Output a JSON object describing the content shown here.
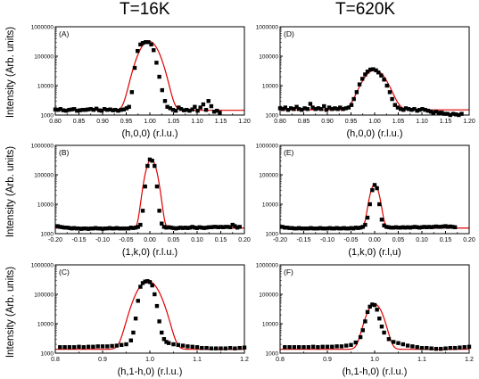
{
  "col_titles": [
    "T=16K",
    "T=620K"
  ],
  "ylabel_shared": "Intensity (Arb. units)",
  "chart_data": [
    {
      "type": "scatter",
      "panel": "A",
      "column": 0,
      "row": 0,
      "xlabel": "(h,0,0) (r.l.u.)",
      "ylabel": "Intensity (Arb. units)",
      "xlim": [
        0.8,
        1.2
      ],
      "ylim": [
        1000,
        1000000
      ],
      "yscale": "log",
      "xticks": [
        0.8,
        0.85,
        0.9,
        0.95,
        1.0,
        1.05,
        1.1,
        1.15,
        1.2
      ],
      "xtick_labels": [
        "0.80",
        "0.85",
        "0.90",
        "0.95",
        "1.00",
        "1.05",
        "1.10",
        "1.15",
        "1.20"
      ],
      "yticks": [
        1000,
        10000,
        100000,
        1000000
      ],
      "ytick_labels": [
        "1000",
        "10000",
        "100000",
        "1000000"
      ],
      "fit": {
        "center": 0.998,
        "sigma": 0.016,
        "peak": 320000,
        "background": 1450,
        "color": "#e00000"
      },
      "points": {
        "x": [
          0.8,
          0.806,
          0.811,
          0.817,
          0.823,
          0.829,
          0.835,
          0.84,
          0.846,
          0.852,
          0.858,
          0.864,
          0.869,
          0.875,
          0.881,
          0.887,
          0.893,
          0.898,
          0.904,
          0.91,
          0.916,
          0.922,
          0.927,
          0.933,
          0.939,
          0.945,
          0.951,
          0.956,
          0.962,
          0.968,
          0.974,
          0.98,
          0.985,
          0.991,
          0.997,
          1.003,
          1.008,
          1.014,
          1.02,
          1.026,
          1.032,
          1.037,
          1.043,
          1.049,
          1.055,
          1.061,
          1.066,
          1.072,
          1.078,
          1.084,
          1.09,
          1.095,
          1.101,
          1.107,
          1.113,
          1.119,
          1.124,
          1.13,
          1.136,
          1.142,
          1.148
        ],
        "y": [
          1550,
          1500,
          1600,
          1450,
          1400,
          1500,
          1550,
          1600,
          1400,
          1450,
          1500,
          1500,
          1550,
          1600,
          1500,
          1650,
          1450,
          1400,
          1600,
          1500,
          1550,
          1450,
          1500,
          1400,
          1500,
          1550,
          1700,
          1900,
          6000,
          40000,
          150000,
          250000,
          280000,
          300000,
          300000,
          250000,
          160000,
          60000,
          20000,
          7000,
          3000,
          1900,
          1700,
          1500,
          1400,
          1800,
          1600,
          1450,
          1500,
          1400,
          1550,
          1900,
          1400,
          1800,
          2300,
          1500,
          3000,
          2000,
          1300,
          1400,
          1200
        ]
      }
    },
    {
      "type": "scatter",
      "panel": "B",
      "column": 0,
      "row": 1,
      "xlabel": "(1,k,0) (r.l.u.)",
      "ylabel": "Intensity (Arb. units)",
      "xlim": [
        -0.2,
        0.2
      ],
      "ylim": [
        1000,
        1000000
      ],
      "yscale": "log",
      "xticks": [
        -0.2,
        -0.15,
        -0.1,
        -0.05,
        0.0,
        0.05,
        0.1,
        0.15,
        0.2
      ],
      "xtick_labels": [
        "-0.20",
        "-0.15",
        "-0.10",
        "-0.05",
        "0.00",
        "0.05",
        "0.10",
        "0.15",
        "0.20"
      ],
      "yticks": [
        1000,
        10000,
        100000,
        1000000
      ],
      "ytick_labels": [
        "1000",
        "10000",
        "100000",
        "1000000"
      ],
      "fit": {
        "center": 0.003,
        "sigma": 0.0085,
        "peak": 330000,
        "background": 1550,
        "color": "#e00000"
      },
      "points": {
        "x": [
          -0.195,
          -0.19,
          -0.185,
          -0.18,
          -0.175,
          -0.17,
          -0.165,
          -0.16,
          -0.155,
          -0.15,
          -0.145,
          -0.14,
          -0.135,
          -0.13,
          -0.125,
          -0.12,
          -0.115,
          -0.11,
          -0.105,
          -0.1,
          -0.095,
          -0.09,
          -0.085,
          -0.08,
          -0.075,
          -0.07,
          -0.065,
          -0.06,
          -0.055,
          -0.05,
          -0.045,
          -0.04,
          -0.035,
          -0.03,
          -0.025,
          -0.02,
          -0.015,
          -0.01,
          -0.005,
          0.0,
          0.005,
          0.01,
          0.015,
          0.02,
          0.025,
          0.03,
          0.035,
          0.04,
          0.045,
          0.05,
          0.055,
          0.06,
          0.065,
          0.07,
          0.075,
          0.08,
          0.085,
          0.09,
          0.095,
          0.1,
          0.105,
          0.11,
          0.115,
          0.12,
          0.125,
          0.13,
          0.135,
          0.14,
          0.145,
          0.15,
          0.155,
          0.16,
          0.165,
          0.17,
          0.175,
          0.18,
          0.185,
          0.19
        ],
        "y": [
          1800,
          1700,
          1650,
          1600,
          1600,
          1550,
          1500,
          1550,
          1500,
          1500,
          1450,
          1500,
          1500,
          1450,
          1500,
          1500,
          1550,
          1500,
          1500,
          1450,
          1500,
          1500,
          1550,
          1500,
          1500,
          1550,
          1500,
          1500,
          1500,
          1500,
          1500,
          1600,
          1550,
          1600,
          1700,
          2000,
          6000,
          40000,
          200000,
          330000,
          300000,
          200000,
          40000,
          6000,
          2200,
          1700,
          1600,
          1650,
          1600,
          1550,
          1500,
          1550,
          1600,
          1550,
          1600,
          1550,
          1600,
          1700,
          1600,
          1550,
          1650,
          1600,
          1550,
          1600,
          1650,
          1650,
          1700,
          1700,
          1650,
          1700,
          1650,
          1700,
          1700,
          1650,
          2000,
          1800,
          1600,
          1700
        ]
      }
    },
    {
      "type": "scatter",
      "panel": "C",
      "column": 0,
      "row": 2,
      "xlabel": "(h,1-h,0) (r.l.u.)",
      "ylabel": "Intensity (Arb. units)",
      "xlim": [
        0.8,
        1.2
      ],
      "ylim": [
        1000,
        1000000
      ],
      "yscale": "log",
      "xticks": [
        0.8,
        0.9,
        1.0,
        1.1,
        1.2
      ],
      "xtick_labels": [
        "0.8",
        "0.9",
        "1.0",
        "1.1",
        "1.2"
      ],
      "yticks": [
        1000,
        10000,
        100000,
        1000000
      ],
      "ytick_labels": [
        "1000",
        "10000",
        "100000",
        "1000000"
      ],
      "fit": {
        "center": 0.996,
        "sigma": 0.018,
        "peak": 280000,
        "background": 1350,
        "color": "#e00000"
      },
      "points": {
        "x": [
          0.81,
          0.82,
          0.83,
          0.84,
          0.85,
          0.86,
          0.87,
          0.88,
          0.89,
          0.9,
          0.91,
          0.92,
          0.93,
          0.94,
          0.95,
          0.96,
          0.965,
          0.97,
          0.975,
          0.98,
          0.985,
          0.99,
          0.995,
          1.0,
          1.005,
          1.01,
          1.015,
          1.02,
          1.025,
          1.03,
          1.035,
          1.04,
          1.05,
          1.06,
          1.07,
          1.08,
          1.09,
          1.1,
          1.11,
          1.12,
          1.13,
          1.14,
          1.15,
          1.16,
          1.17,
          1.18,
          1.19,
          1.2
        ],
        "y": [
          1600,
          1600,
          1600,
          1600,
          1650,
          1600,
          1650,
          1650,
          1700,
          1700,
          1700,
          1750,
          1800,
          1900,
          2000,
          2700,
          5000,
          15000,
          60000,
          180000,
          240000,
          270000,
          280000,
          260000,
          200000,
          100000,
          40000,
          12000,
          5000,
          3000,
          2400,
          2200,
          2000,
          1900,
          1800,
          1700,
          1650,
          1600,
          1500,
          1500,
          1450,
          1450,
          1450,
          1450,
          1500,
          1450,
          1500,
          1550
        ]
      }
    },
    {
      "type": "scatter",
      "panel": "D",
      "column": 1,
      "row": 0,
      "xlabel": "(h,0,0) (r.l.u.)",
      "ylabel": "Intensity (Arb. units)",
      "xlim": [
        0.8,
        1.2
      ],
      "ylim": [
        1000,
        1000000
      ],
      "yscale": "log",
      "xticks": [
        0.8,
        0.85,
        0.9,
        0.95,
        1.0,
        1.05,
        1.1,
        1.15,
        1.2
      ],
      "xtick_labels": [
        "0.80",
        "0.85",
        "0.90",
        "0.95",
        "1.00",
        "1.05",
        "1.10",
        "1.15",
        "1.20"
      ],
      "yticks": [
        1000,
        10000,
        100000,
        1000000
      ],
      "ytick_labels": [
        "1000",
        "10000",
        "100000",
        "1000000"
      ],
      "fit": {
        "center": 1.0,
        "sigma": 0.019,
        "peak": 32000,
        "background": 1500,
        "color": "#e00000"
      },
      "points": {
        "x": [
          0.8,
          0.806,
          0.811,
          0.817,
          0.823,
          0.829,
          0.835,
          0.84,
          0.846,
          0.852,
          0.858,
          0.864,
          0.869,
          0.875,
          0.881,
          0.887,
          0.893,
          0.898,
          0.904,
          0.91,
          0.916,
          0.922,
          0.927,
          0.933,
          0.939,
          0.945,
          0.951,
          0.956,
          0.962,
          0.968,
          0.974,
          0.98,
          0.985,
          0.991,
          0.997,
          1.003,
          1.008,
          1.014,
          1.02,
          1.026,
          1.032,
          1.037,
          1.043,
          1.049,
          1.055,
          1.061,
          1.066,
          1.072,
          1.078,
          1.084,
          1.09,
          1.095,
          1.101,
          1.107,
          1.113,
          1.119,
          1.124,
          1.13,
          1.136,
          1.142,
          1.148,
          1.154,
          1.16,
          1.166,
          1.172,
          1.178,
          1.184
        ],
        "y": [
          1700,
          1600,
          1800,
          1500,
          1700,
          1600,
          1900,
          1600,
          1500,
          1700,
          1600,
          2400,
          1800,
          1600,
          1700,
          1600,
          2000,
          1500,
          1800,
          1600,
          1700,
          1600,
          1800,
          1600,
          1700,
          1800,
          2200,
          3500,
          6000,
          11000,
          17000,
          24000,
          30000,
          35000,
          36000,
          33000,
          28000,
          22000,
          16000,
          10000,
          6000,
          3500,
          2200,
          1800,
          1600,
          1500,
          1700,
          1600,
          1500,
          1600,
          1400,
          1500,
          1600,
          1500,
          1400,
          1300,
          1200,
          1300,
          1200,
          1200,
          1100,
          1100,
          1000,
          1100,
          1050,
          1000,
          1100
        ]
      }
    },
    {
      "type": "scatter",
      "panel": "E",
      "column": 1,
      "row": 1,
      "xlabel": "(1,k,0) (r.l,u)",
      "ylabel": "Intensity (Arb. units)",
      "xlim": [
        -0.2,
        0.2
      ],
      "ylim": [
        1000,
        1000000
      ],
      "yscale": "log",
      "xticks": [
        -0.2,
        -0.15,
        -0.1,
        -0.05,
        0.0,
        0.05,
        0.1,
        0.15,
        0.2
      ],
      "xtick_labels": [
        "-0.20",
        "-0.15",
        "-0.10",
        "-0.05",
        "0.00",
        "0.05",
        "0.10",
        "0.15",
        "0.20"
      ],
      "yticks": [
        1000,
        10000,
        100000,
        1000000
      ],
      "ytick_labels": [
        "1000",
        "10000",
        "100000",
        "1000000"
      ],
      "fit": {
        "center": 0.0,
        "sigma": 0.0075,
        "peak": 45000,
        "background": 1550,
        "color": "#e00000"
      },
      "points": {
        "x": [
          -0.195,
          -0.19,
          -0.185,
          -0.18,
          -0.175,
          -0.17,
          -0.165,
          -0.16,
          -0.155,
          -0.15,
          -0.145,
          -0.14,
          -0.135,
          -0.13,
          -0.125,
          -0.12,
          -0.115,
          -0.11,
          -0.105,
          -0.1,
          -0.095,
          -0.09,
          -0.085,
          -0.08,
          -0.075,
          -0.07,
          -0.065,
          -0.06,
          -0.055,
          -0.05,
          -0.045,
          -0.04,
          -0.035,
          -0.03,
          -0.025,
          -0.02,
          -0.015,
          -0.01,
          -0.005,
          0.0,
          0.005,
          0.01,
          0.015,
          0.02,
          0.025,
          0.03,
          0.035,
          0.04,
          0.045,
          0.05,
          0.055,
          0.06,
          0.065,
          0.07,
          0.075,
          0.08,
          0.085,
          0.09,
          0.095,
          0.1,
          0.105,
          0.11,
          0.115,
          0.12,
          0.125,
          0.13,
          0.135,
          0.14,
          0.145,
          0.15,
          0.155,
          0.16,
          0.165,
          0.17
        ],
        "y": [
          1700,
          1600,
          1600,
          1550,
          1550,
          1500,
          1500,
          1550,
          1500,
          1500,
          1500,
          1500,
          1550,
          1500,
          1500,
          1500,
          1550,
          1500,
          1500,
          1500,
          1550,
          1500,
          1500,
          1550,
          1500,
          1500,
          1550,
          1500,
          1500,
          1550,
          1500,
          1600,
          1550,
          1600,
          1700,
          2000,
          3500,
          10000,
          30000,
          45000,
          35000,
          10000,
          3000,
          1900,
          1700,
          1650,
          1600,
          1600,
          1650,
          1600,
          1600,
          1650,
          1600,
          1650,
          1600,
          1650,
          1700,
          1650,
          1600,
          1650,
          1700,
          1650,
          1700,
          1650,
          1700,
          1750,
          1700,
          1700,
          1750,
          1800,
          1700,
          1750,
          1700,
          1650
        ]
      }
    },
    {
      "type": "scatter",
      "panel": "F",
      "column": 1,
      "row": 2,
      "xlabel": "(h,1-h,0) (r.l.u.)",
      "ylabel": "Intensity (Arb. units)",
      "xlim": [
        0.8,
        1.2
      ],
      "ylim": [
        1000,
        1000000
      ],
      "yscale": "log",
      "xticks": [
        0.8,
        0.9,
        1.0,
        1.1,
        1.2
      ],
      "xtick_labels": [
        "0.8",
        "0.9",
        "1.0",
        "1.1",
        "1.2"
      ],
      "yticks": [
        1000,
        10000,
        100000,
        1000000
      ],
      "ytick_labels": [
        "1000",
        "10000",
        "100000",
        "1000000"
      ],
      "fit": {
        "center": 1.0,
        "sigma": 0.013,
        "peak": 45000,
        "background": 1350,
        "color": "#e00000"
      },
      "points": {
        "x": [
          0.81,
          0.82,
          0.83,
          0.84,
          0.85,
          0.86,
          0.87,
          0.88,
          0.89,
          0.9,
          0.91,
          0.92,
          0.93,
          0.94,
          0.95,
          0.96,
          0.97,
          0.975,
          0.98,
          0.985,
          0.99,
          0.995,
          1.0,
          1.005,
          1.01,
          1.015,
          1.02,
          1.03,
          1.04,
          1.05,
          1.06,
          1.07,
          1.08,
          1.09,
          1.1,
          1.11,
          1.12,
          1.13,
          1.14,
          1.15,
          1.16,
          1.17,
          1.18,
          1.19,
          1.2
        ],
        "y": [
          1600,
          1600,
          1600,
          1600,
          1600,
          1600,
          1650,
          1600,
          1650,
          1650,
          1650,
          1700,
          1700,
          1800,
          1900,
          2300,
          3500,
          6000,
          12000,
          25000,
          38000,
          45000,
          43000,
          30000,
          15000,
          8000,
          5000,
          3000,
          2400,
          2200,
          2000,
          1800,
          1700,
          1600,
          1500,
          1500,
          1450,
          1400,
          1400,
          1450,
          1500,
          1500,
          1550,
          1600,
          1650
        ]
      }
    }
  ]
}
